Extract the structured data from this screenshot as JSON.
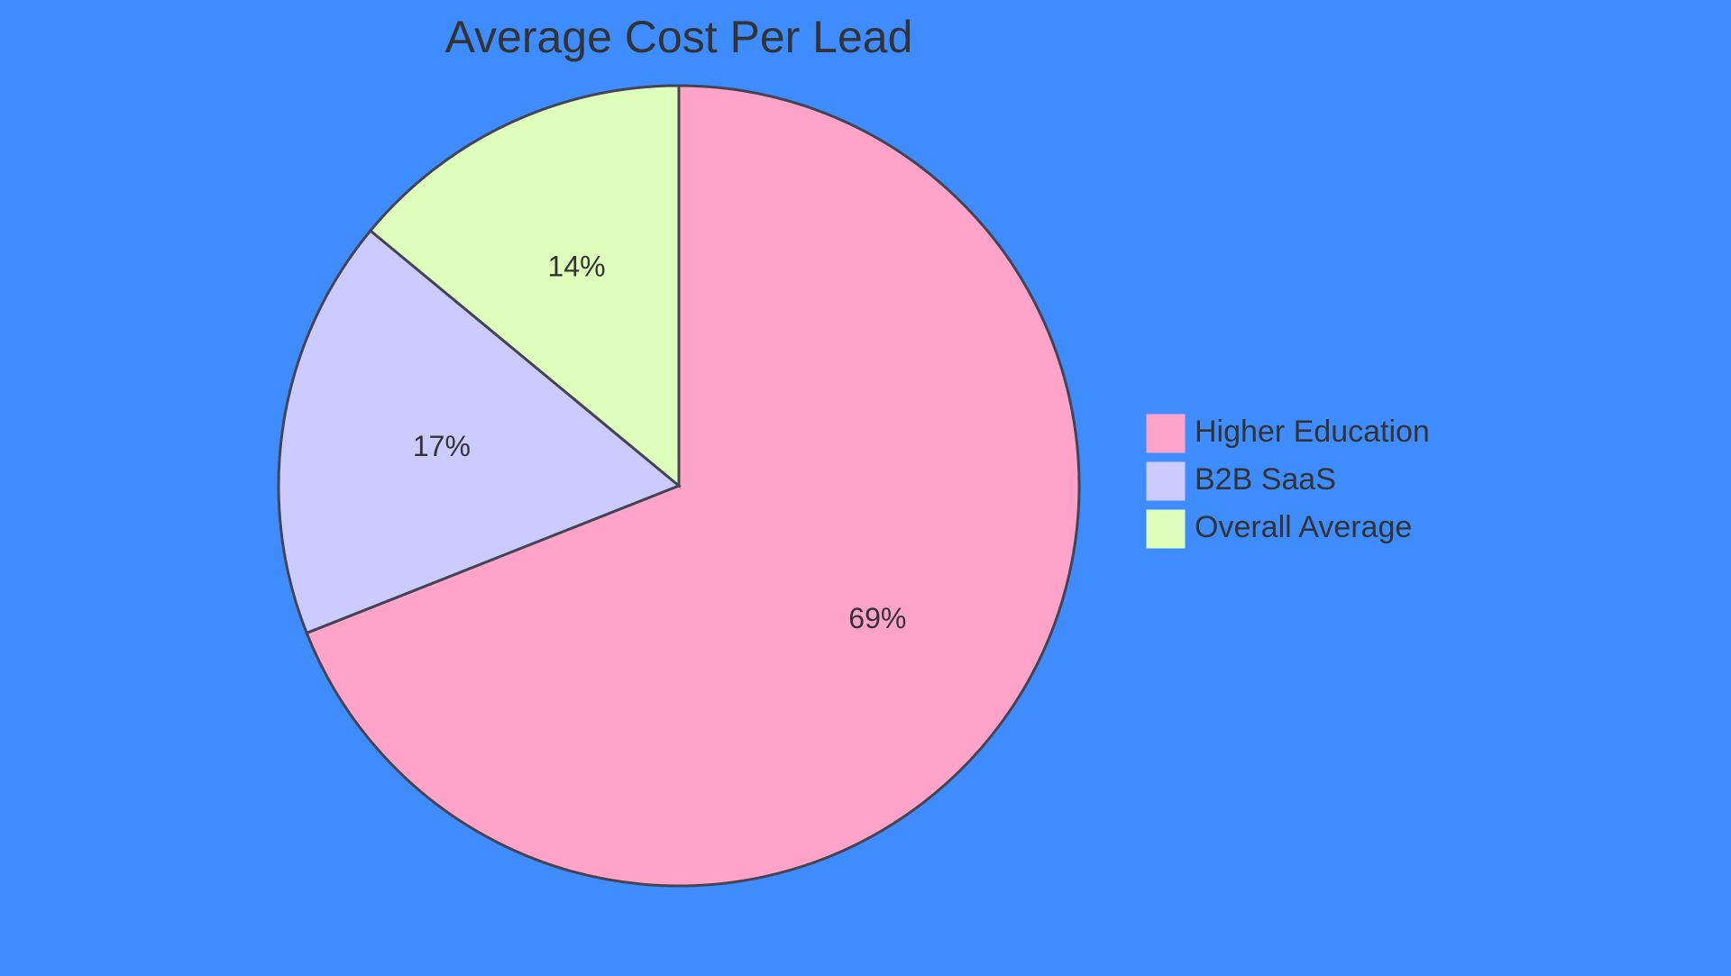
{
  "chart_data": {
    "type": "pie",
    "title": "Average Cost Per Lead",
    "categories": [
      "Higher Education",
      "B2B SaaS",
      "Overall Average"
    ],
    "values": [
      69,
      17,
      14
    ],
    "value_labels": [
      "69%",
      "17%",
      "14%"
    ],
    "colors": [
      "#ffa3c9",
      "#cbcbff",
      "#deffbc"
    ],
    "stroke_color": "#444455",
    "legend": "right",
    "start": "top",
    "direction": "clockwise"
  },
  "background_color": "#3f8cff"
}
